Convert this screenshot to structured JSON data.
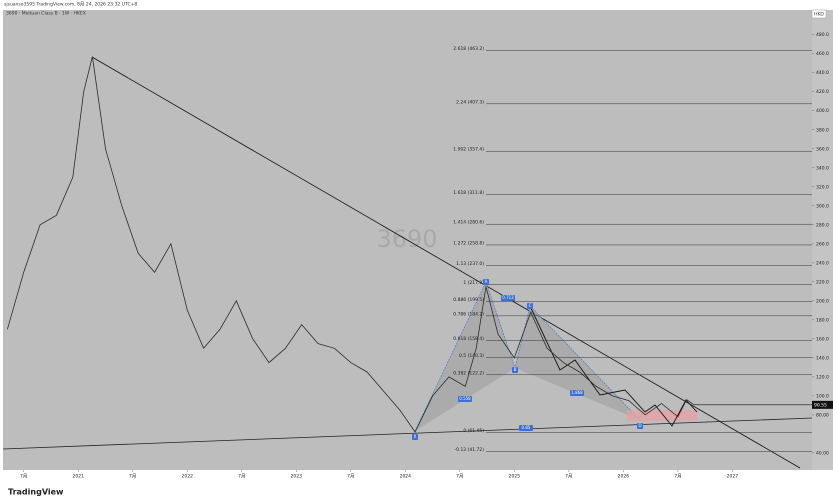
{
  "header": {
    "watermark": "sjsuanso3595 TradingView.com, 8月 24, 2026 23:32 UTC+8",
    "symbol": "3690 · Meituan Class B · 1W · HKEX",
    "currency": "HKD",
    "brand": "TradingView"
  },
  "chart_data": {
    "type": "line",
    "title": "3690",
    "color": "#2b2b2b",
    "x": [
      2020.35,
      2020.5,
      2020.65,
      2020.8,
      2020.95,
      2021.05,
      2021.13,
      2021.25,
      2021.4,
      2021.55,
      2021.7,
      2021.85,
      2022.0,
      2022.15,
      2022.3,
      2022.45,
      2022.6,
      2022.75,
      2022.9,
      2023.05,
      2023.2,
      2023.35,
      2023.5,
      2023.65,
      2023.8,
      2023.95,
      2024.09,
      2024.25,
      2024.4,
      2024.55,
      2024.65,
      2024.74,
      2024.85,
      2025.0,
      2025.15,
      2025.3,
      2025.45,
      2025.6,
      2025.75,
      2025.9,
      2026.05,
      2026.2,
      2026.35,
      2026.5,
      2026.58,
      2026.65
    ],
    "values": [
      170,
      230,
      280,
      290,
      330,
      420,
      457,
      360,
      300,
      250,
      230,
      260,
      190,
      150,
      170,
      200,
      160,
      135,
      150,
      175,
      155,
      150,
      135,
      125,
      105,
      85,
      62,
      100,
      120,
      110,
      150,
      215,
      165,
      140,
      188,
      150,
      135,
      125,
      110,
      100,
      95,
      80,
      92,
      78,
      96,
      90.55
    ],
    "last_label": "90.55",
    "xlim": [
      2020.31,
      2027.73
    ],
    "ylim": [
      22,
      506
    ],
    "xticks": [
      {
        "value": 2020.5,
        "label": "7月"
      },
      2021,
      {
        "value": 2021.5,
        "label": "7月"
      },
      2022,
      {
        "value": 2022.5,
        "label": "7月"
      },
      2023,
      {
        "value": 2023.5,
        "label": "7月"
      },
      2024,
      {
        "value": 2024.5,
        "label": "7月"
      },
      2025,
      {
        "value": 2025.5,
        "label": "7月"
      },
      2026,
      {
        "value": 2026.5,
        "label": "7月"
      },
      2027
    ],
    "yticks": [
      {
        "value": 40,
        "label": "40.00"
      },
      {
        "value": 80,
        "label": "80.00"
      },
      {
        "value": 100,
        "label": "100.0"
      },
      {
        "value": 120,
        "label": "120.0"
      },
      {
        "value": 140,
        "label": "140.0"
      },
      {
        "value": 160,
        "label": "160.0"
      },
      {
        "value": 180,
        "label": "180.0"
      },
      {
        "value": 200,
        "label": "200.0"
      },
      {
        "value": 220,
        "label": "220.0"
      },
      {
        "value": 240,
        "label": "240.0"
      },
      {
        "value": 260,
        "label": "260.0"
      },
      {
        "value": 280,
        "label": "280.0"
      },
      {
        "value": 300,
        "label": "300.0"
      },
      {
        "value": 320,
        "label": "320.0"
      },
      {
        "value": 340,
        "label": "340.0"
      },
      {
        "value": 360,
        "label": "360.0"
      },
      {
        "value": 380,
        "label": "380.0"
      },
      {
        "value": 400,
        "label": "400.0"
      },
      {
        "value": 420,
        "label": "420.0"
      },
      {
        "value": 440,
        "label": "440.0"
      },
      {
        "value": 460,
        "label": "460.0"
      },
      {
        "value": 480,
        "label": "480.0"
      }
    ],
    "fib_levels": [
      {
        "value": 463.2,
        "label": "2.618 (463.2)"
      },
      {
        "value": 407.3,
        "label": "2.24 (407.3)"
      },
      {
        "value": 357.4,
        "label": "1.902 (357.4)"
      },
      {
        "value": 311.8,
        "label": "1.618 (311.8)"
      },
      {
        "value": 280.6,
        "label": "1.414 (280.6)"
      },
      {
        "value": 258.8,
        "label": "1.272 (258.8)"
      },
      {
        "value": 237.0,
        "label": "1.13 (237.0)"
      },
      {
        "value": 217.0,
        "label": "1 (217.0)"
      },
      {
        "value": 199.5,
        "label": "0.886 (199.5)"
      },
      {
        "value": 184.2,
        "label": "0.786 (184.2)"
      },
      {
        "value": 158.4,
        "label": "0.618 (158.4)"
      },
      {
        "value": 140.3,
        "label": "0.5 (140.3)"
      },
      {
        "value": 122.2,
        "label": "0.382 (122.2)"
      },
      {
        "value": 61.45,
        "label": "0 (61.45)"
      },
      {
        "value": 41.72,
        "label": "-0.13 (41.72)"
      }
    ],
    "annotations": [
      "A",
      "B",
      "C",
      "D",
      "X",
      "0.558",
      "0.713",
      "0.85",
      "1.868"
    ]
  }
}
